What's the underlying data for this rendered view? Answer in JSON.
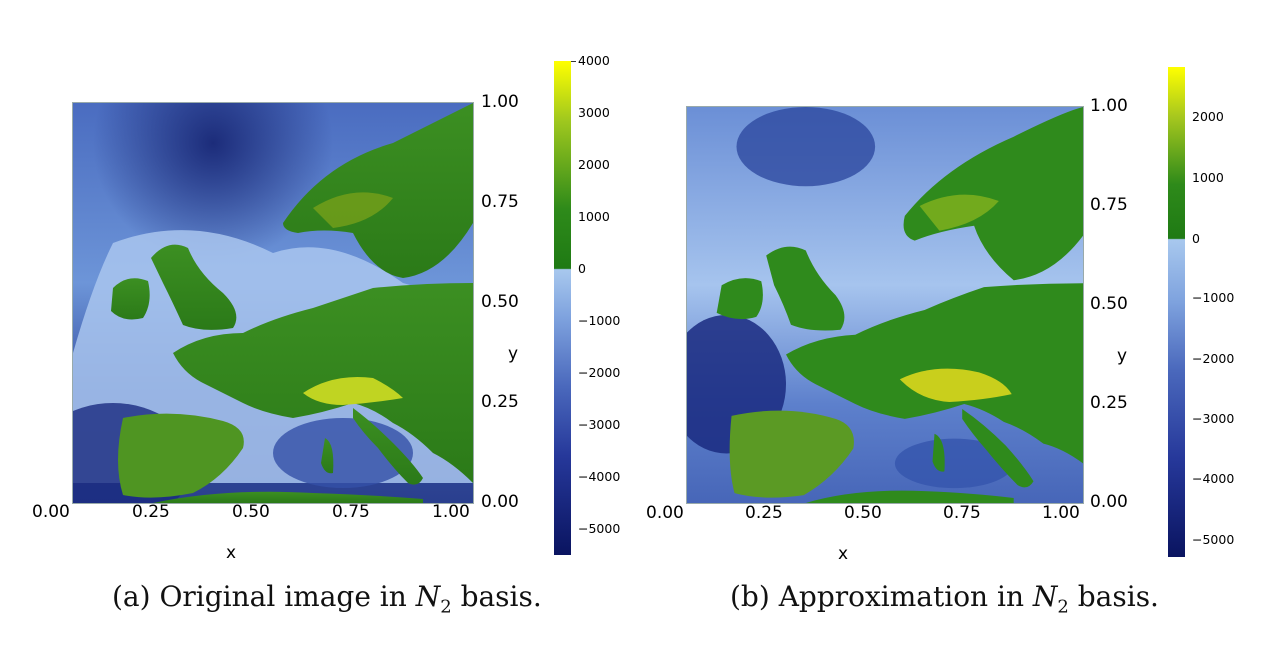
{
  "figure_a": {
    "caption_label": "(a)",
    "caption_text": "Original image in",
    "caption_math": "N",
    "caption_sub": "2",
    "caption_end": "basis.",
    "xlabel": "x",
    "ylabel": "y",
    "xticks": [
      "0.00",
      "0.25",
      "0.50",
      "0.75",
      "1.00"
    ],
    "yticks": [
      "1.00",
      "0.75",
      "0.50",
      "0.25",
      "0.00"
    ],
    "colorbar_ticks": [
      "4000",
      "3000",
      "2000",
      "1000",
      "0",
      "−1000",
      "−2000",
      "−3000",
      "−4000",
      "−5000"
    ]
  },
  "figure_b": {
    "caption_label": "(b)",
    "caption_text": "Approximation in",
    "caption_math": "N",
    "caption_sub": "2",
    "caption_end": "basis.",
    "xlabel": "x",
    "ylabel": "y",
    "xticks": [
      "0.00",
      "0.25",
      "0.50",
      "0.75",
      "1.00"
    ],
    "yticks": [
      "1.00",
      "0.75",
      "0.50",
      "0.25",
      "0.00"
    ],
    "colorbar_ticks": [
      "2000",
      "1000",
      "0",
      "−1000",
      "−2000",
      "−3000",
      "−4000",
      "−5000"
    ]
  },
  "colors": {
    "deep_sea": "#0c1660",
    "sea": "#3a5fb8",
    "shallow": "#a8c8ee",
    "land_low": "#1f7a1a",
    "land_high": "#d8e020",
    "peak": "#ffff00"
  }
}
